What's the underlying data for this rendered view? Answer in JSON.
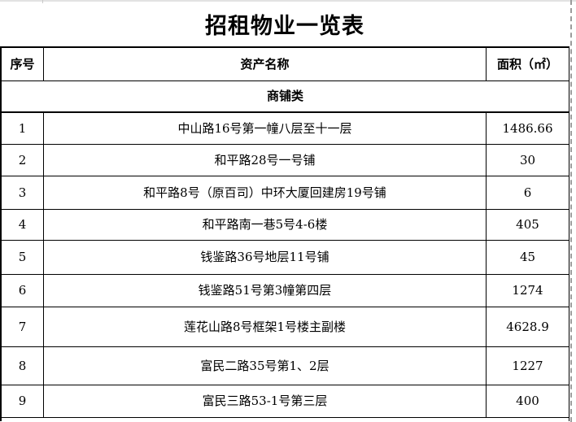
{
  "page": {
    "title": "招租物业一览表",
    "colors": {
      "border": "#000000",
      "page_break_line": "#9b9b9b",
      "faint_gridline": "#e2e2e2",
      "background": "#ffffff"
    }
  },
  "table": {
    "columns": [
      {
        "key": "index",
        "label": "序号"
      },
      {
        "key": "name",
        "label": "资产名称"
      },
      {
        "key": "area",
        "label": "面积（㎡）"
      }
    ],
    "section": "商铺类",
    "rows": [
      {
        "index": "1",
        "name": "中山路16号第一幢八层至十一层",
        "area": "1486.66"
      },
      {
        "index": "2",
        "name": "和平路28号一号铺",
        "area": "30"
      },
      {
        "index": "3",
        "name": "和平路8号（原百司）中环大厦回建房19号铺",
        "area": "6"
      },
      {
        "index": "4",
        "name": "和平路南一巷5号4-6楼",
        "area": "405"
      },
      {
        "index": "5",
        "name": "钱鉴路36号地层11号铺",
        "area": "45"
      },
      {
        "index": "6",
        "name": "钱鉴路51号第3幢第四层",
        "area": "1274"
      },
      {
        "index": "7",
        "name": "莲花山路8号框架1号楼主副楼",
        "area": "4628.9"
      },
      {
        "index": "8",
        "name": "富民二路35号第1、2层",
        "area": "1227"
      },
      {
        "index": "9",
        "name": "富民三路53-1号第三层",
        "area": "400"
      }
    ]
  }
}
